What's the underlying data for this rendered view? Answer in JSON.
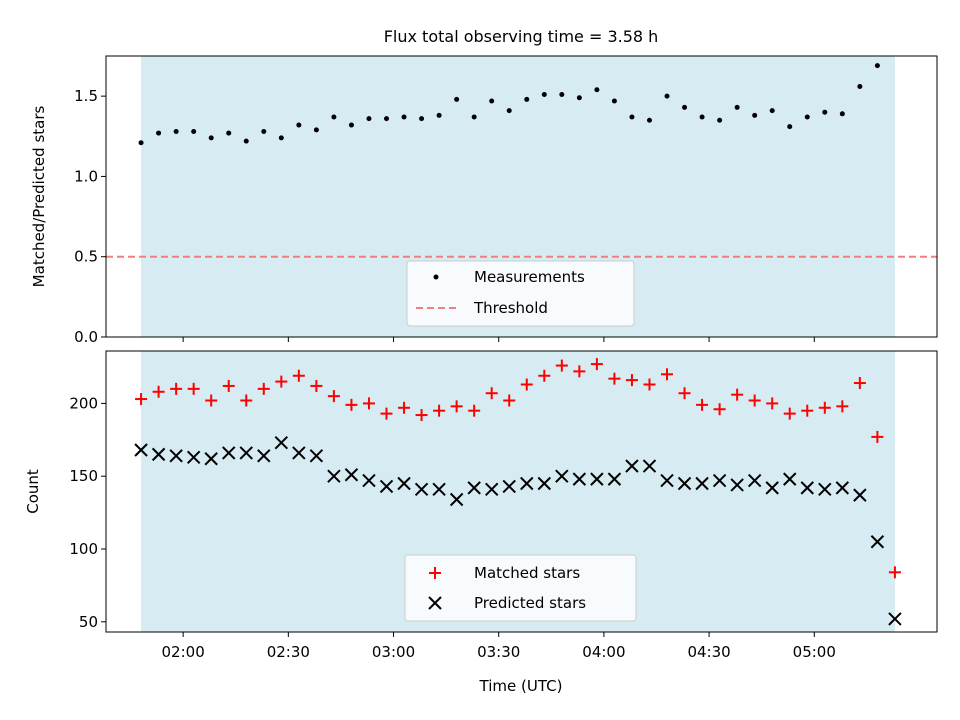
{
  "chart_data": {
    "title": "Flux total observing time = 3.58 h",
    "xlabel": "Time (UTC)",
    "xtick_labels": [
      "02:00",
      "02:30",
      "03:00",
      "03:30",
      "04:00",
      "04:30",
      "05:00"
    ],
    "xtick_minutes": [
      120,
      150,
      180,
      210,
      240,
      270,
      300
    ],
    "xlim_minutes": [
      98,
      335
    ],
    "shaded_span_minutes": [
      108,
      323
    ],
    "shade_color": "#add8e6",
    "x_minutes": [
      108,
      113,
      118,
      123,
      128,
      133,
      138,
      143,
      148,
      153,
      158,
      163,
      168,
      173,
      178,
      183,
      188,
      193,
      198,
      203,
      208,
      213,
      218,
      223,
      228,
      233,
      238,
      243,
      248,
      253,
      258,
      263,
      268,
      273,
      278,
      283,
      288,
      293,
      298,
      303,
      308,
      313,
      318
    ],
    "panels": [
      {
        "type": "scatter",
        "ylabel": "Matched/Predicted stars",
        "ylim": [
          0,
          1.75
        ],
        "yticks": [
          0.0,
          0.5,
          1.0,
          1.5
        ],
        "ytick_labels": [
          "0.0",
          "0.5",
          "1.0",
          "1.5"
        ],
        "series": [
          {
            "name": "Measurements",
            "marker": "dot",
            "color": "#000000",
            "values": [
              1.21,
              1.27,
              1.28,
              1.28,
              1.24,
              1.27,
              1.22,
              1.28,
              1.24,
              1.32,
              1.29,
              1.37,
              1.32,
              1.36,
              1.36,
              1.37,
              1.36,
              1.38,
              1.48,
              1.37,
              1.47,
              1.41,
              1.48,
              1.51,
              1.51,
              1.49,
              1.54,
              1.47,
              1.37,
              1.35,
              1.5,
              1.43,
              1.37,
              1.35,
              1.43,
              1.38,
              1.41,
              1.31,
              1.37,
              1.4,
              1.39,
              1.56,
              1.69
            ]
          }
        ],
        "lines": [
          {
            "name": "Threshold",
            "y": 0.5,
            "color": "#f08080",
            "style": "dashed"
          }
        ],
        "legend": {
          "position": "lower-center",
          "entries": [
            "Measurements",
            "Threshold"
          ]
        }
      },
      {
        "type": "scatter",
        "ylabel": "Count",
        "ylim": [
          43,
          236
        ],
        "yticks": [
          50,
          100,
          150,
          200
        ],
        "ytick_labels": [
          "50",
          "100",
          "150",
          "200"
        ],
        "series": [
          {
            "name": "Matched stars",
            "marker": "plus",
            "color": "#ff0000",
            "values": [
              203,
              208,
              210,
              210,
              202,
              212,
              202,
              210,
              215,
              219,
              212,
              205,
              199,
              200,
              193,
              197,
              192,
              195,
              198,
              195,
              207,
              202,
              213,
              219,
              226,
              222,
              227,
              217,
              216,
              213,
              220,
              207,
              199,
              196,
              206,
              202,
              200,
              193,
              195,
              197,
              198,
              214,
              177
            ]
          },
          {
            "name": "Predicted stars",
            "marker": "x",
            "color": "#000000",
            "values": [
              168,
              165,
              164,
              163,
              162,
              166,
              166,
              164,
              173,
              166,
              164,
              150,
              151,
              147,
              143,
              145,
              141,
              141,
              134,
              142,
              141,
              143,
              145,
              145,
              150,
              148,
              148,
              148,
              157,
              157,
              147,
              145,
              145,
              147,
              144,
              147,
              142,
              148,
              142,
              141,
              142,
              137,
              105
            ]
          }
        ],
        "extra_points": [
          {
            "series": "Matched stars",
            "x_minutes": 323,
            "value": 84
          },
          {
            "series": "Predicted stars",
            "x_minutes": 323,
            "value": 52
          }
        ],
        "legend": {
          "position": "lower-center",
          "entries": [
            "Matched stars",
            "Predicted stars"
          ]
        }
      }
    ]
  }
}
